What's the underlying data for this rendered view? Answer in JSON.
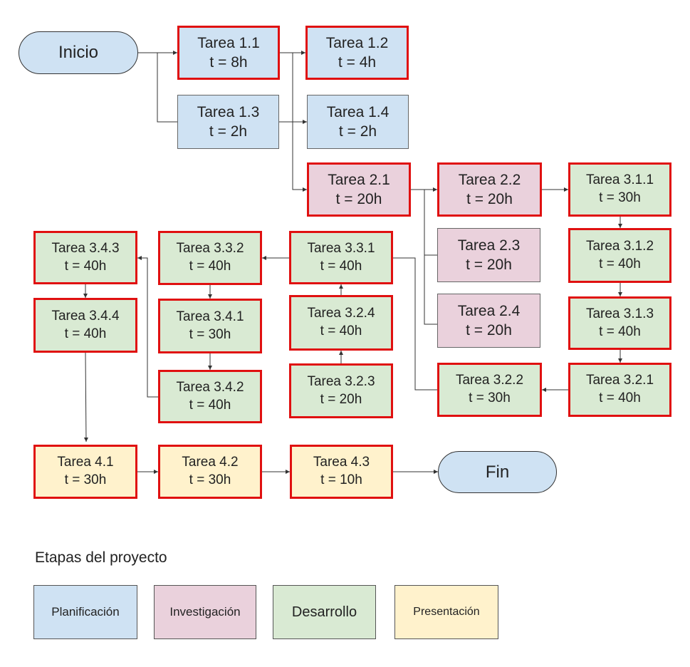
{
  "colors": {
    "planificacion": "#cfe2f3",
    "investigacion": "#ead1dc",
    "desarrollo": "#d9ead3",
    "presentacion": "#fff2cc",
    "critical_border": "#e01010",
    "line": "#333333"
  },
  "start": {
    "label": "Inicio"
  },
  "end": {
    "label": "Fin"
  },
  "tasks": {
    "t1_1": {
      "name": "Tarea 1.1",
      "time": "t = 8h",
      "stage": "planificacion",
      "critical": true
    },
    "t1_2": {
      "name": "Tarea 1.2",
      "time": "t = 4h",
      "stage": "planificacion",
      "critical": true
    },
    "t1_3": {
      "name": "Tarea 1.3",
      "time": "t = 2h",
      "stage": "planificacion",
      "critical": false
    },
    "t1_4": {
      "name": "Tarea 1.4",
      "time": "t = 2h",
      "stage": "planificacion",
      "critical": false
    },
    "t2_1": {
      "name": "Tarea 2.1",
      "time": "t = 20h",
      "stage": "investigacion",
      "critical": true
    },
    "t2_2": {
      "name": "Tarea 2.2",
      "time": "t = 20h",
      "stage": "investigacion",
      "critical": true
    },
    "t2_3": {
      "name": "Tarea 2.3",
      "time": "t = 20h",
      "stage": "investigacion",
      "critical": false
    },
    "t2_4": {
      "name": "Tarea 2.4",
      "time": "t = 20h",
      "stage": "investigacion",
      "critical": false
    },
    "t3_1_1": {
      "name": "Tarea 3.1.1",
      "time": "t = 30h",
      "stage": "desarrollo",
      "critical": true
    },
    "t3_1_2": {
      "name": "Tarea 3.1.2",
      "time": "t = 40h",
      "stage": "desarrollo",
      "critical": true
    },
    "t3_1_3": {
      "name": "Tarea 3.1.3",
      "time": "t = 40h",
      "stage": "desarrollo",
      "critical": true
    },
    "t3_2_1": {
      "name": "Tarea 3.2.1",
      "time": "t = 40h",
      "stage": "desarrollo",
      "critical": true
    },
    "t3_2_2": {
      "name": "Tarea 3.2.2",
      "time": "t = 30h",
      "stage": "desarrollo",
      "critical": true
    },
    "t3_2_3": {
      "name": "Tarea 3.2.3",
      "time": "t = 20h",
      "stage": "desarrollo",
      "critical": true
    },
    "t3_2_4": {
      "name": "Tarea 3.2.4",
      "time": "t = 40h",
      "stage": "desarrollo",
      "critical": true
    },
    "t3_3_1": {
      "name": "Tarea 3.3.1",
      "time": "t = 40h",
      "stage": "desarrollo",
      "critical": true
    },
    "t3_3_2": {
      "name": "Tarea 3.3.2",
      "time": "t = 40h",
      "stage": "desarrollo",
      "critical": true
    },
    "t3_4_1": {
      "name": "Tarea 3.4.1",
      "time": "t = 30h",
      "stage": "desarrollo",
      "critical": true
    },
    "t3_4_2": {
      "name": "Tarea 3.4.2",
      "time": "t = 40h",
      "stage": "desarrollo",
      "critical": true
    },
    "t3_4_3": {
      "name": "Tarea 3.4.3",
      "time": "t = 40h",
      "stage": "desarrollo",
      "critical": true
    },
    "t3_4_4": {
      "name": "Tarea 3.4.4",
      "time": "t = 40h",
      "stage": "desarrollo",
      "critical": true
    },
    "t4_1": {
      "name": "Tarea 4.1",
      "time": "t = 30h",
      "stage": "presentacion",
      "critical": true
    },
    "t4_2": {
      "name": "Tarea 4.2",
      "time": "t = 30h",
      "stage": "presentacion",
      "critical": true
    },
    "t4_3": {
      "name": "Tarea 4.3",
      "time": "t = 10h",
      "stage": "presentacion",
      "critical": true
    }
  },
  "legend": {
    "title": "Etapas del proyecto",
    "items": [
      {
        "label": "Planificación",
        "stage": "planificacion"
      },
      {
        "label": "Investigación",
        "stage": "investigacion"
      },
      {
        "label": "Desarrollo",
        "stage": "desarrollo"
      },
      {
        "label": "Presentación",
        "stage": "presentacion"
      }
    ]
  }
}
